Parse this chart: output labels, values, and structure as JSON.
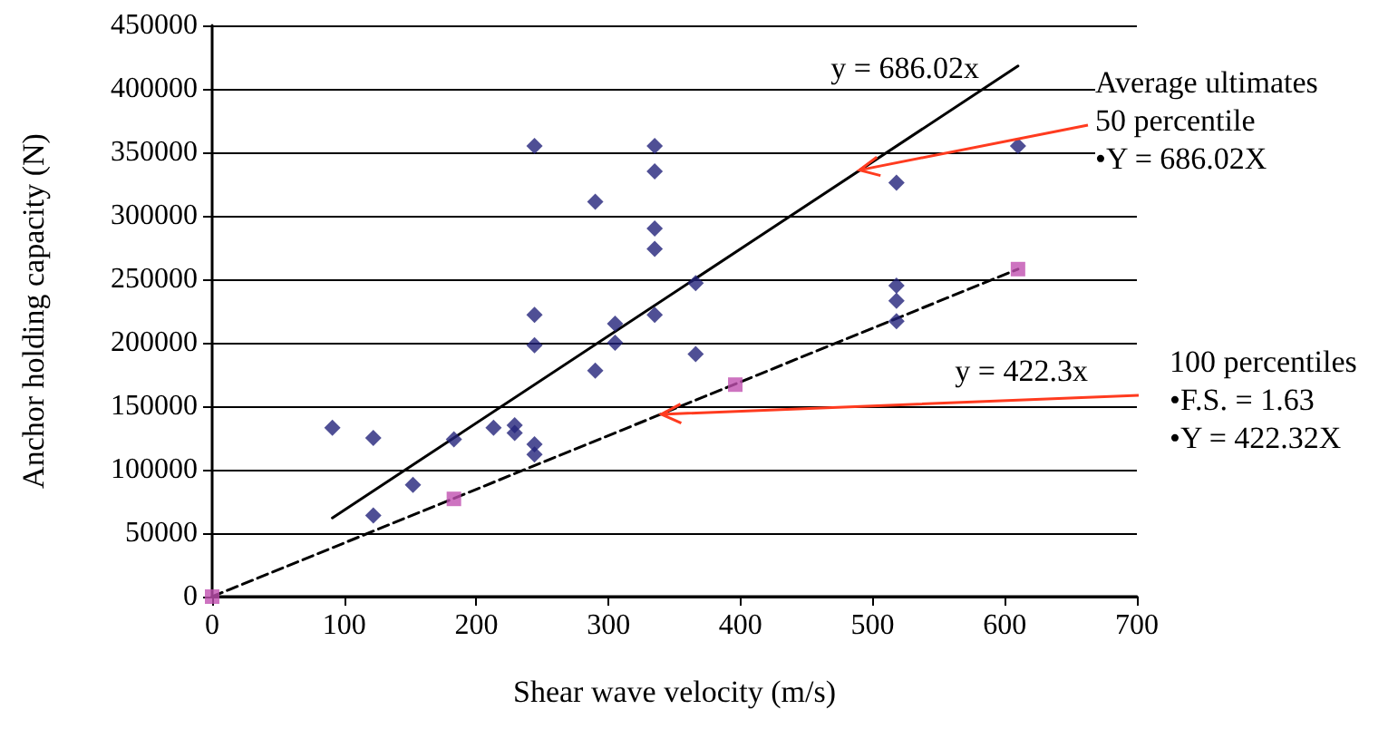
{
  "chart_data": {
    "type": "scatter",
    "xlabel": "Shear wave velocity (m/s)",
    "ylabel": "Anchor holding capacity (N)",
    "xlim": [
      0,
      700
    ],
    "xticks": [
      0,
      100,
      200,
      300,
      400,
      500,
      600,
      700
    ],
    "ylim": [
      0,
      450000
    ],
    "yticks": [
      0,
      50000,
      100000,
      150000,
      200000,
      250000,
      300000,
      350000,
      400000,
      450000
    ],
    "grid": "y",
    "series": [
      {
        "type": "scatter",
        "marker": "diamond",
        "color": "#23237a",
        "x": [
          91,
          122,
          122,
          152,
          183,
          213,
          229,
          229,
          244,
          244,
          244,
          244,
          244,
          290,
          290,
          305,
          305,
          335,
          335,
          335,
          335,
          335,
          366,
          366,
          518,
          518,
          518,
          518,
          610
        ],
        "values": [
          133000,
          125000,
          64000,
          88000,
          124000,
          133000,
          135000,
          129000,
          355000,
          222000,
          198000,
          120000,
          112000,
          311000,
          178000,
          215000,
          200000,
          355000,
          335000,
          290000,
          274000,
          222000,
          247000,
          191000,
          326000,
          245000,
          233000,
          217000,
          355000
        ]
      },
      {
        "type": "scatter",
        "marker": "square",
        "color": "#c050b0",
        "x": [
          0,
          183,
          396,
          610
        ],
        "values": [
          0,
          77000,
          167000,
          258000
        ]
      },
      {
        "type": "line",
        "marker": "none",
        "line_style": "solid",
        "color": "#000000",
        "x": [
          91,
          610
        ],
        "values": [
          62000,
          418000
        ]
      },
      {
        "type": "line",
        "marker": "none",
        "line_style": "dashed",
        "color": "#000000",
        "x": [
          0,
          610
        ],
        "values": [
          0,
          258000
        ]
      }
    ],
    "annotations": [
      "y = 686.02x",
      "y = 422.3x",
      {
        "text": "Average ultimates\n50 percentile\n•Y = 686.02X",
        "x": 490,
        "y": 336000
      },
      {
        "text": "100 percentiles\n•F.S. = 1.63\n•Y = 422.32X",
        "x": 340,
        "y": 143600
      }
    ]
  }
}
